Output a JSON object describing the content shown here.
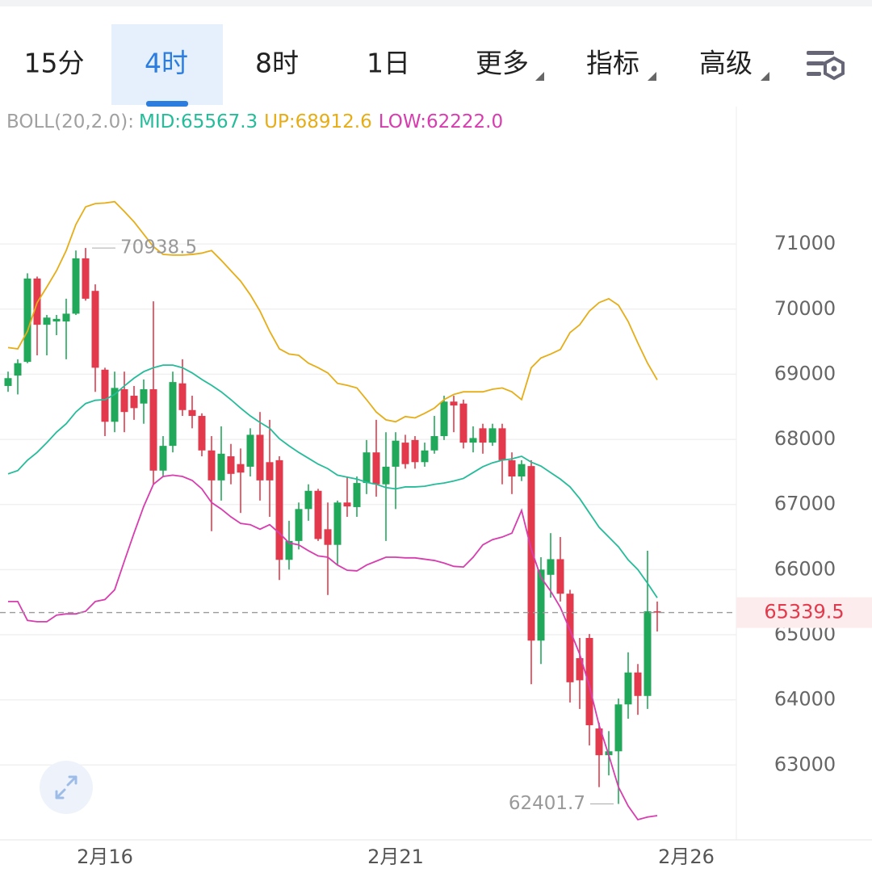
{
  "tabs": [
    "15分",
    "4时",
    "8时",
    "1日",
    "更多",
    "指标",
    "高级"
  ],
  "active_tab": 1,
  "indicator": {
    "label": "BOLL(20,2.0):",
    "items": [
      "MID:65567.3",
      "UP:68912.6",
      "LOW:62222.0"
    ]
  },
  "chart_data": {
    "type": "candlestick",
    "categories": [
      null,
      null,
      null,
      null,
      null,
      null,
      null,
      null,
      null,
      null,
      "2月16",
      null,
      null,
      null,
      null,
      null,
      null,
      null,
      null,
      null,
      null,
      null,
      null,
      null,
      null,
      null,
      null,
      null,
      null,
      null,
      null,
      null,
      null,
      null,
      null,
      null,
      null,
      null,
      null,
      null,
      "2月21",
      null,
      null,
      null,
      null,
      null,
      null,
      null,
      null,
      null,
      null,
      null,
      null,
      null,
      null,
      null,
      null,
      null,
      null,
      null,
      null,
      null,
      null,
      null,
      null,
      null,
      null,
      null,
      null,
      null,
      "2月26"
    ],
    "open": [
      68820,
      68980,
      69190,
      70470,
      69760,
      69810,
      69810,
      69930,
      70780,
      70280,
      69070,
      68270,
      68770,
      68670,
      68550,
      68770,
      67520,
      67900,
      68860,
      68450,
      68360,
      67830,
      67370,
      67740,
      67620,
      67580,
      68070,
      67650,
      67680,
      66150,
      66440,
      66930,
      67210,
      66620,
      66380,
      67030,
      66960,
      67330,
      67800,
      67310,
      67580,
      67950,
      67990,
      67650,
      67830,
      68050,
      68580,
      68550,
      67950,
      68170,
      67950,
      68170,
      67680,
      67430,
      67590,
      64910,
      65920,
      66160,
      65630,
      64640,
      64950,
      63560,
      63150,
      63210,
      63930,
      64420,
      64060,
      65360,
      null,
      null,
      null
    ],
    "high": [
      69040,
      69230,
      70550,
      70500,
      69910,
      69910,
      70160,
      70900,
      70938.5,
      70380,
      69100,
      69040,
      69040,
      68820,
      68920,
      70120,
      68050,
      69040,
      69230,
      68670,
      68400,
      68050,
      68200,
      67930,
      67860,
      68170,
      68420,
      68300,
      67740,
      66750,
      67030,
      67310,
      67240,
      67030,
      67060,
      67430,
      67430,
      67990,
      68300,
      68110,
      68110,
      68070,
      68050,
      67950,
      68360,
      68670,
      68670,
      68610,
      68200,
      68240,
      68240,
      68240,
      67800,
      67680,
      67680,
      66190,
      66560,
      66500,
      65690,
      64950,
      65010,
      63650,
      63520,
      64020,
      64730,
      64550,
      66290,
      65510,
      null,
      null,
      null
    ],
    "low": [
      68730,
      68690,
      69170,
      69290,
      69290,
      69600,
      69230,
      69910,
      70130,
      68730,
      68050,
      68110,
      68110,
      68300,
      68240,
      67310,
      67430,
      67800,
      68360,
      68170,
      67740,
      66590,
      67060,
      67310,
      66870,
      67430,
      67060,
      66810,
      65840,
      66000,
      66310,
      66750,
      66440,
      65610,
      66070,
      66810,
      66810,
      67160,
      67120,
      66440,
      66930,
      67550,
      67550,
      67580,
      67780,
      67990,
      68110,
      67860,
      67800,
      67780,
      67900,
      67310,
      67160,
      67360,
      64240,
      64550,
      65570,
      65510,
      63960,
      63860,
      63300,
      62660,
      62840,
      62401.7,
      63710,
      63770,
      63860,
      65050,
      null,
      null,
      null
    ],
    "close": [
      68940,
      69170,
      70470,
      69760,
      69870,
      69850,
      69930,
      70780,
      70160,
      69100,
      68270,
      68790,
      68420,
      68480,
      68770,
      67520,
      67900,
      68880,
      68450,
      68360,
      67830,
      67370,
      67780,
      67470,
      67490,
      68070,
      67370,
      67370,
      66150,
      66440,
      66930,
      67210,
      66470,
      66380,
      67030,
      66970,
      67330,
      67800,
      67310,
      67580,
      67980,
      67620,
      67650,
      67830,
      68050,
      68580,
      68520,
      67950,
      68020,
      67950,
      68170,
      67680,
      67430,
      67620,
      64910,
      66000,
      66160,
      65630,
      64270,
      64300,
      63610,
      63150,
      63210,
      63930,
      64420,
      64060,
      65360,
      65339.5,
      null,
      null,
      null
    ],
    "up_color": "#22a85a",
    "down_color": "#e23a4c",
    "series": [
      {
        "color": "#25bc9a",
        "values": [
          67470,
          67520,
          67680,
          67800,
          67950,
          68110,
          68240,
          68420,
          68550,
          68600,
          68610,
          68690,
          68820,
          68940,
          69040,
          69100,
          69140,
          69140,
          69100,
          69020,
          68920,
          68830,
          68730,
          68610,
          68480,
          68360,
          68260,
          68170,
          68010,
          67900,
          67800,
          67710,
          67620,
          67550,
          67450,
          67420,
          67390,
          67340,
          67310,
          67260,
          67240,
          67270,
          67270,
          67280,
          67310,
          67330,
          67360,
          67400,
          67490,
          67580,
          67640,
          67680,
          67700,
          67740,
          67650,
          67590,
          67490,
          67390,
          67270,
          67090,
          66870,
          66650,
          66500,
          66350,
          66150,
          66000,
          65790,
          65567.3,
          null,
          null,
          null
        ]
      },
      {
        "color": "#e6ad16",
        "values": [
          69410,
          69390,
          69660,
          70100,
          70340,
          70590,
          70900,
          71300,
          71570,
          71620,
          71630,
          71650,
          71500,
          71340,
          71150,
          70960,
          70840,
          70830,
          70830,
          70840,
          70860,
          70900,
          70750,
          70590,
          70430,
          70220,
          69970,
          69660,
          69390,
          69310,
          69290,
          69170,
          69100,
          69020,
          68860,
          68830,
          68790,
          68610,
          68420,
          68300,
          68270,
          68350,
          68330,
          68400,
          68480,
          68610,
          68690,
          68730,
          68730,
          68730,
          68770,
          68790,
          68730,
          68610,
          69100,
          69250,
          69310,
          69380,
          69640,
          69760,
          69970,
          70100,
          70160,
          70060,
          69810,
          69480,
          69170,
          68912.6,
          null,
          null,
          null
        ]
      },
      {
        "color": "#d83daf",
        "values": [
          65510,
          65510,
          65220,
          65200,
          65200,
          65300,
          65320,
          65320,
          65360,
          65510,
          65540,
          65690,
          66130,
          66560,
          66970,
          67310,
          67430,
          67450,
          67430,
          67370,
          67240,
          67030,
          66930,
          66810,
          66710,
          66690,
          66620,
          66690,
          66560,
          66410,
          66380,
          66290,
          66210,
          66190,
          66070,
          65990,
          65980,
          66070,
          66130,
          66190,
          66190,
          66180,
          66180,
          66160,
          66140,
          66100,
          66050,
          66040,
          66190,
          66380,
          66460,
          66500,
          66560,
          66910,
          66310,
          65880,
          65670,
          65420,
          65070,
          64700,
          64210,
          63610,
          63150,
          62660,
          62370,
          62160,
          62200,
          62222,
          null,
          null,
          null
        ]
      }
    ],
    "ylim": [
      61850,
      73110
    ],
    "yticks": [
      63000,
      64000,
      65000,
      66000,
      67000,
      68000,
      69000,
      70000,
      71000
    ],
    "grid": true
  }
}
